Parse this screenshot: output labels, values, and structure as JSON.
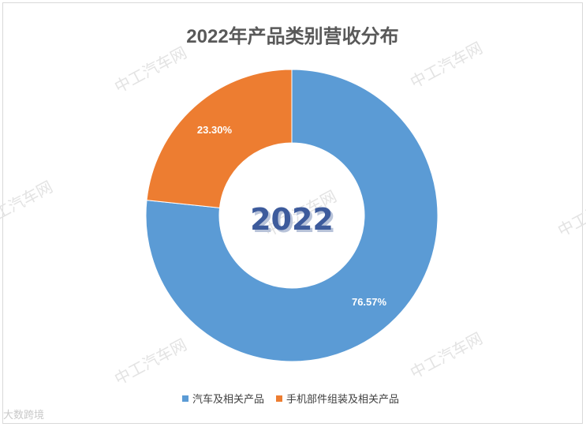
{
  "watermark": "中工汽车网",
  "corner_logo": "大数跨境",
  "chart_data": {
    "type": "pie",
    "variant": "donut",
    "title": "2022年产品类别营收分布",
    "center_label": "2022",
    "categories": [
      "汽车及相关产品",
      "手机部件组装及相关产品"
    ],
    "values": [
      76.57,
      23.3
    ],
    "data_labels": [
      "76.57%",
      "23.30%"
    ],
    "unit": "%",
    "colors": [
      "#5b9bd5",
      "#ed7d31"
    ],
    "start_angle_deg": 0,
    "direction": "clockwise",
    "legend": {
      "placement": "bottom",
      "entries": [
        "汽车及相关产品",
        "手机部件组装及相关产品"
      ]
    }
  }
}
